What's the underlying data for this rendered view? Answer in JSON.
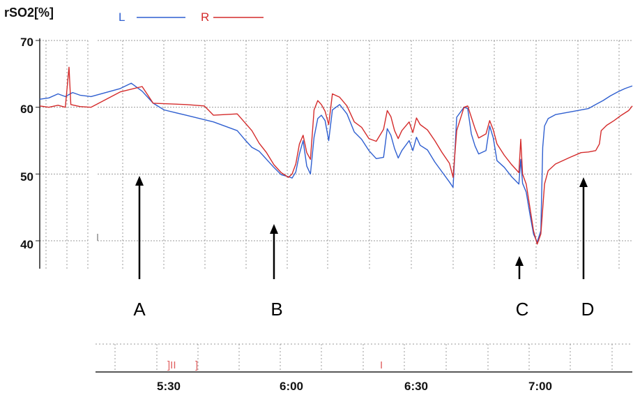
{
  "chart_data": {
    "type": "line",
    "title": "",
    "ylabel": "rSO2[%]",
    "xlabel": "",
    "ylim": [
      35,
      70
    ],
    "y_ticks": [
      "70",
      "60",
      "50",
      "40"
    ],
    "x_ticks": [
      "5:30",
      "6:00",
      "6:30",
      "7:00"
    ],
    "grid": true,
    "legend_position": "top-left",
    "series": [
      {
        "name": "L",
        "color": "#2f5fd0",
        "values": [
          [
            0,
            61.2
          ],
          [
            5,
            61.4
          ],
          [
            10,
            62.0
          ],
          [
            14,
            61.6
          ],
          [
            18,
            62.2
          ],
          [
            22,
            61.8
          ],
          [
            28,
            61.6
          ],
          [
            44,
            62.8
          ],
          [
            50,
            63.6
          ],
          [
            56,
            62.4
          ],
          [
            62,
            60.6
          ],
          [
            68,
            59.6
          ],
          [
            80,
            58.8
          ],
          [
            95,
            57.8
          ],
          [
            108,
            56.5
          ],
          [
            112,
            55.2
          ],
          [
            116,
            54.0
          ],
          [
            120,
            53.4
          ],
          [
            124,
            52.2
          ],
          [
            128,
            51.0
          ],
          [
            132,
            49.9
          ],
          [
            136,
            49.6
          ],
          [
            138,
            49.4
          ],
          [
            140,
            50.3
          ],
          [
            142,
            53.0
          ],
          [
            144,
            55.0
          ],
          [
            146,
            51.2
          ],
          [
            148,
            50.0
          ],
          [
            150,
            55.5
          ],
          [
            152,
            58.3
          ],
          [
            154,
            58.8
          ],
          [
            156,
            58.0
          ],
          [
            158,
            55.0
          ],
          [
            160,
            59.6
          ],
          [
            164,
            60.4
          ],
          [
            168,
            59.0
          ],
          [
            172,
            56.3
          ],
          [
            176,
            55.2
          ],
          [
            180,
            53.5
          ],
          [
            184,
            52.3
          ],
          [
            188,
            52.5
          ],
          [
            190,
            56.8
          ],
          [
            192,
            55.8
          ],
          [
            194,
            53.8
          ],
          [
            196,
            52.4
          ],
          [
            198,
            53.5
          ],
          [
            202,
            55.0
          ],
          [
            204,
            53.5
          ],
          [
            206,
            55.5
          ],
          [
            208,
            54.3
          ],
          [
            212,
            53.6
          ],
          [
            216,
            51.8
          ],
          [
            220,
            50.3
          ],
          [
            224,
            48.8
          ],
          [
            226,
            48.0
          ],
          [
            228,
            58.5
          ],
          [
            232,
            60.0
          ],
          [
            234,
            59.8
          ],
          [
            236,
            56.0
          ],
          [
            238,
            54.2
          ],
          [
            240,
            53.0
          ],
          [
            244,
            53.5
          ],
          [
            246,
            57.2
          ],
          [
            248,
            55.4
          ],
          [
            250,
            52.0
          ],
          [
            254,
            51.0
          ],
          [
            258,
            49.6
          ],
          [
            262,
            48.5
          ],
          [
            263,
            52.2
          ],
          [
            264,
            48.6
          ],
          [
            266,
            47.3
          ],
          [
            268,
            44.0
          ],
          [
            270,
            41.0
          ],
          [
            272,
            39.8
          ],
          [
            274,
            41.5
          ],
          [
            275,
            54.0
          ],
          [
            276,
            57.2
          ],
          [
            278,
            58.3
          ],
          [
            282,
            58.9
          ],
          [
            292,
            59.4
          ],
          [
            300,
            59.8
          ],
          [
            304,
            60.4
          ],
          [
            308,
            61.0
          ],
          [
            312,
            61.7
          ],
          [
            316,
            62.3
          ],
          [
            320,
            62.8
          ],
          [
            324,
            63.2
          ]
        ]
      },
      {
        "name": "R",
        "color": "#d42b2b",
        "values": [
          [
            0,
            60.2
          ],
          [
            5,
            60.0
          ],
          [
            10,
            60.3
          ],
          [
            14,
            60.0
          ],
          [
            16,
            66.0
          ],
          [
            17,
            60.4
          ],
          [
            22,
            60.1
          ],
          [
            28,
            60.0
          ],
          [
            44,
            62.3
          ],
          [
            50,
            62.7
          ],
          [
            56,
            63.1
          ],
          [
            62,
            60.6
          ],
          [
            80,
            60.4
          ],
          [
            90,
            60.2
          ],
          [
            95,
            58.8
          ],
          [
            108,
            59.0
          ],
          [
            116,
            56.5
          ],
          [
            120,
            54.6
          ],
          [
            124,
            53.2
          ],
          [
            128,
            51.4
          ],
          [
            132,
            50.2
          ],
          [
            136,
            49.5
          ],
          [
            138,
            50.0
          ],
          [
            140,
            51.5
          ],
          [
            142,
            54.5
          ],
          [
            144,
            55.8
          ],
          [
            146,
            53.2
          ],
          [
            148,
            52.2
          ],
          [
            150,
            59.6
          ],
          [
            152,
            61.0
          ],
          [
            154,
            60.4
          ],
          [
            156,
            59.4
          ],
          [
            158,
            57.4
          ],
          [
            160,
            62.0
          ],
          [
            164,
            61.5
          ],
          [
            168,
            60.2
          ],
          [
            172,
            57.8
          ],
          [
            176,
            57.0
          ],
          [
            180,
            55.3
          ],
          [
            184,
            54.9
          ],
          [
            188,
            56.7
          ],
          [
            190,
            59.5
          ],
          [
            192,
            58.6
          ],
          [
            194,
            56.5
          ],
          [
            196,
            55.3
          ],
          [
            198,
            56.5
          ],
          [
            202,
            57.8
          ],
          [
            204,
            56.2
          ],
          [
            206,
            58.4
          ],
          [
            208,
            57.4
          ],
          [
            212,
            56.6
          ],
          [
            216,
            55.0
          ],
          [
            220,
            53.2
          ],
          [
            224,
            51.6
          ],
          [
            226,
            49.5
          ],
          [
            228,
            56.5
          ],
          [
            232,
            60.0
          ],
          [
            234,
            60.2
          ],
          [
            236,
            58.5
          ],
          [
            238,
            56.8
          ],
          [
            240,
            55.4
          ],
          [
            244,
            56.0
          ],
          [
            246,
            58.0
          ],
          [
            248,
            56.6
          ],
          [
            250,
            54.5
          ],
          [
            254,
            52.8
          ],
          [
            258,
            51.4
          ],
          [
            262,
            50.2
          ],
          [
            263,
            55.2
          ],
          [
            264,
            50.0
          ],
          [
            266,
            48.5
          ],
          [
            268,
            45.0
          ],
          [
            270,
            41.5
          ],
          [
            272,
            39.5
          ],
          [
            274,
            41.0
          ],
          [
            276,
            48.5
          ],
          [
            278,
            50.5
          ],
          [
            282,
            51.5
          ],
          [
            290,
            52.5
          ],
          [
            296,
            53.2
          ],
          [
            300,
            53.3
          ],
          [
            304,
            53.5
          ],
          [
            306,
            54.5
          ],
          [
            307,
            56.5
          ],
          [
            310,
            57.3
          ],
          [
            314,
            58.0
          ],
          [
            318,
            58.8
          ],
          [
            322,
            59.5
          ],
          [
            324,
            60.2
          ]
        ]
      }
    ],
    "markers": [
      "A",
      "B",
      "C",
      "D"
    ],
    "events": [
      "]II",
      "]",
      "I"
    ]
  }
}
